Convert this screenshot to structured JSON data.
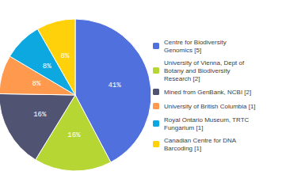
{
  "chart_data": {
    "type": "pie",
    "categories": [
      "Centre for Biodiversity\nGenomics [5]",
      "University of Vienna, Dept of\nBotany and Biodiversity\nResearch [2]",
      "Mined from GenBank, NCBI [2]",
      "University of British Columbia [1]",
      "Royal Ontario Museum, TRTC\nFungarium [1]",
      "Canadian Centre for DNA\nBarcoding [1]"
    ],
    "values": [
      41,
      16,
      16,
      8,
      8,
      8
    ],
    "value_labels": [
      "41%",
      "16%",
      "16%",
      "8%",
      "8%",
      "8%"
    ],
    "data_labels": true,
    "legend": "right"
  }
}
